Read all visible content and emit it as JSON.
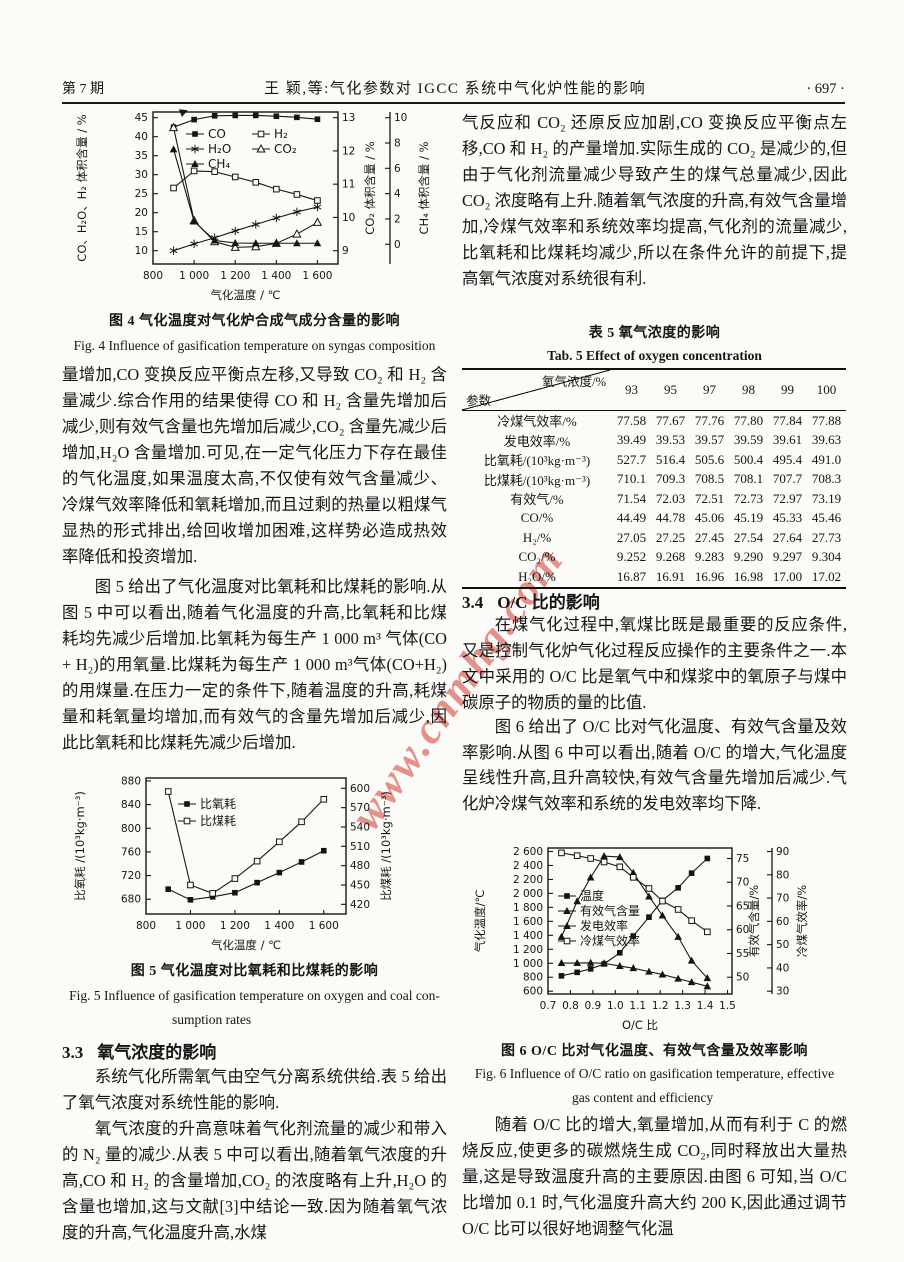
{
  "header": {
    "issue": "第 7 期",
    "title": "王  颖,等:气化参数对 IGCC 系统中气化炉性能的影响",
    "page": "· 697 ·"
  },
  "watermark": {
    "text": "www.cnmhg.com",
    "color": "#d03a2e"
  },
  "left_col": {
    "p1": "量增加,CO 变换反应平衡点左移,又导致 CO₂ 和 H₂ 含量减少.综合作用的结果使得 CO 和 H₂ 含量先增加后减少,则有效气含量也先增加后减少,CO₂ 含量先减少后增加,H₂O 含量增加.可见,在一定气化压力下存在最佳的气化温度,如果温度太高,不仅使有效气含量减少、冷煤气效率降低和氧耗增加,而且过剩的热量以粗煤气显热的形式排出,给回收增加困难,这样势必造成热效率降低和投资增加.",
    "p2": "图 5 给出了气化温度对比氧耗和比煤耗的影响.从图 5 中可以看出,随着气化温度的升高,比氧耗和比煤耗均先减少后增加.比氧耗为每生产 1 000 m³ 气体(CO + H₂)的用氧量.比煤耗为每生产 1 000 m³气体(CO+H₂)的用煤量.在压力一定的条件下,随着温度的升高,耗煤量和耗氧量均增加,而有效气的含量先增加后减少,因此比氧耗和比煤耗先减少后增加.",
    "sec33": {
      "num": "3.3",
      "title": "氧气浓度的影响"
    },
    "p3": "系统气化所需氧气由空气分离系统供给.表 5 给出了氧气浓度对系统性能的影响.",
    "p4": "氧气浓度的升高意味着气化剂流量的减少和带入的 N₂ 量的减少.从表 5 中可以看出,随着氧气浓度的升高,CO 和 H₂ 的含量增加,CO₂ 的浓度略有上升,H₂O 的含量也增加,这与文献[3]中结论一致.因为随着氧气浓度的升高,气化温度升高,水煤"
  },
  "right_col": {
    "p1": "气反应和 CO₂ 还原反应加剧,CO 变换反应平衡点左移,CO 和 H₂ 的产量增加.实际生成的 CO₂ 是减少的,但由于气化剂流量减少导致产生的煤气总量减少,因此 CO₂ 浓度略有上升.随着氧气浓度的升高,有效气含量增加,冷煤气效率和系统效率均提高,气化剂的流量减少,比氧耗和比煤耗均减少,所以在条件允许的前提下,提高氧气浓度对系统很有利.",
    "sec34": {
      "num": "3.4",
      "title": "O/C 比的影响"
    },
    "p2": "在煤气化过程中,氧煤比既是最重要的反应条件,又是控制气化炉气化过程反应操作的主要条件之一.本文中采用的 O/C 比是氧气中和煤浆中的氧原子与煤中碳原子的物质的量的比值.",
    "p3": "图 6 给出了 O/C 比对气化温度、有效气含量及效率影响.从图 6 中可以看出,随着 O/C 的增大,气化温度呈线性升高,且升高较快,有效气含量先增加后减少.气化炉冷煤气效率和系统的发电效率均下降.",
    "p4": "随着 O/C 比的增大,氧量增加,从而有利于 C 的燃烧反应,使更多的碳燃烧生成 CO₂,同时释放出大量热量,这是导致温度升高的主要原因.由图 6 可知,当 O/C 比增加 0.1 时,气化温度升高大约 200 K,因此通过调节 O/C 比可以很好地调整气化温"
  },
  "table5": {
    "caption_cn": "表 5   氧气浓度的影响",
    "caption_en": "Tab. 5   Effect of oxygen concentration",
    "corner_top": "氧气浓度/%",
    "corner_bottom": "参数",
    "columns": [
      "93",
      "95",
      "97",
      "98",
      "99",
      "100"
    ],
    "rows": [
      {
        "label": "冷煤气效率/%",
        "values": [
          "77.58",
          "77.67",
          "77.76",
          "77.80",
          "77.84",
          "77.88"
        ]
      },
      {
        "label": "发电效率/%",
        "values": [
          "39.49",
          "39.53",
          "39.57",
          "39.59",
          "39.61",
          "39.63"
        ]
      },
      {
        "label": "比氧耗/(10³kg·m⁻³)",
        "values": [
          "527.7",
          "516.4",
          "505.6",
          "500.4",
          "495.4",
          "491.0"
        ]
      },
      {
        "label": "比煤耗/(10³kg·m⁻³)",
        "values": [
          "710.1",
          "709.3",
          "708.5",
          "708.1",
          "707.7",
          "708.3"
        ]
      },
      {
        "label": "有效气/%",
        "values": [
          "71.54",
          "72.03",
          "72.51",
          "72.73",
          "72.97",
          "73.19"
        ]
      },
      {
        "label": "CO/%",
        "values": [
          "44.49",
          "44.78",
          "45.06",
          "45.19",
          "45.33",
          "45.46"
        ]
      },
      {
        "label": "H₂/%",
        "values": [
          "27.05",
          "27.25",
          "27.45",
          "27.54",
          "27.64",
          "27.73"
        ]
      },
      {
        "label": "CO₂/%",
        "values": [
          "9.252",
          "9.268",
          "9.283",
          "9.290",
          "9.297",
          "9.304"
        ]
      },
      {
        "label": "H₂O/%",
        "values": [
          "16.87",
          "16.91",
          "16.96",
          "16.98",
          "17.00",
          "17.02"
        ]
      }
    ]
  },
  "chart_data": [
    {
      "id": "fig4",
      "type": "line",
      "title_cn": "图 4   气化温度对气化炉合成气成分含量的影响",
      "title_en_lines": [
        "Fig. 4   Influence of gasification temperature on syngas composition"
      ],
      "xlabel": "气化温度 / ℃",
      "x_axis": {
        "min": 800,
        "max": 1700,
        "ticks": [
          {
            "v": 800,
            "label": "800"
          },
          {
            "v": 1000,
            "label": "1 000"
          },
          {
            "v": 1200,
            "label": "1 200"
          },
          {
            "v": 1400,
            "label": "1 400"
          },
          {
            "v": 1600,
            "label": "1 600"
          }
        ]
      },
      "y_axes": [
        {
          "id": "left",
          "title": "CO、H₂O、H₂ 体积含量 / %",
          "min": 6.5,
          "max": 46.5,
          "ticks": [
            {
              "v": 10,
              "label": "10"
            },
            {
              "v": 15,
              "label": "15"
            },
            {
              "v": 20,
              "label": "20"
            },
            {
              "v": 25,
              "label": "25"
            },
            {
              "v": 30,
              "label": "30"
            },
            {
              "v": 35,
              "label": "35"
            },
            {
              "v": 40,
              "label": "40"
            },
            {
              "v": 45,
              "label": "45"
            }
          ]
        },
        {
          "id": "co2",
          "title": "CO₂ 体积含量 / %",
          "min": 8.6,
          "max": 13.17,
          "ticks": [
            {
              "v": 9,
              "label": "9"
            },
            {
              "v": 10,
              "label": "10"
            },
            {
              "v": 11,
              "label": "11"
            },
            {
              "v": 12,
              "label": "12"
            },
            {
              "v": 13,
              "label": "13"
            }
          ]
        },
        {
          "id": "ch4",
          "title": "CH₄ 体积含量 / %",
          "min": -1.56,
          "max": 10.45,
          "ticks": [
            {
              "v": 0,
              "label": "0"
            },
            {
              "v": 2,
              "label": "2"
            },
            {
              "v": 4,
              "label": "4"
            },
            {
              "v": 6,
              "label": "6"
            },
            {
              "v": 8,
              "label": "8"
            },
            {
              "v": 10,
              "label": "10"
            }
          ]
        }
      ],
      "x": [
        900,
        1000,
        1100,
        1200,
        1300,
        1400,
        1500,
        1600
      ],
      "series": [
        {
          "name": "CO",
          "axis": "left",
          "marker": "sqf",
          "values": [
            42.5,
            44.5,
            45.5,
            45.6,
            45.6,
            45.4,
            45.1,
            44.6
          ]
        },
        {
          "name": "H₂",
          "axis": "left",
          "marker": "sqo",
          "values": [
            26.5,
            31.0,
            30.8,
            29.4,
            28.0,
            26.2,
            24.8,
            23.2
          ]
        },
        {
          "name": "H₂O",
          "axis": "left",
          "marker": "star",
          "values": [
            10.0,
            11.8,
            13.4,
            15.2,
            16.9,
            18.6,
            20.2,
            21.5
          ]
        },
        {
          "name": "CO₂",
          "axis": "co2",
          "marker": "trio",
          "values": [
            12.7,
            9.9,
            9.27,
            9.1,
            9.12,
            9.22,
            9.5,
            9.85
          ]
        },
        {
          "name": "CH₄",
          "axis": "ch4",
          "marker": "trif",
          "values": [
            7.5,
            1.8,
            0.3,
            0.1,
            0.08,
            0.08,
            0.08,
            0.08
          ]
        }
      ]
    },
    {
      "id": "fig5",
      "type": "line",
      "title_cn": "图 5   气化温度对比氧耗和比煤耗的影响",
      "title_en_lines": [
        "Fig. 5   Influence of gasification temperature on oxygen and coal con-",
        "sumption rates"
      ],
      "xlabel": "气化温度 / ℃",
      "x_axis": {
        "min": 800,
        "max": 1700,
        "ticks": [
          {
            "v": 800,
            "label": "800"
          },
          {
            "v": 1000,
            "label": "1 000"
          },
          {
            "v": 1200,
            "label": "1 200"
          },
          {
            "v": 1400,
            "label": "1 400"
          },
          {
            "v": 1600,
            "label": "1 600"
          }
        ]
      },
      "y_axes": [
        {
          "id": "left",
          "title": "比氧耗 /(10³kg·m⁻³)",
          "min": 655,
          "max": 885,
          "ticks": [
            {
              "v": 680,
              "label": "680"
            },
            {
              "v": 720,
              "label": "720"
            },
            {
              "v": 760,
              "label": "760"
            },
            {
              "v": 800,
              "label": "800"
            },
            {
              "v": 840,
              "label": "840"
            },
            {
              "v": 880,
              "label": "880"
            }
          ]
        },
        {
          "id": "coal",
          "title": "比煤耗 /(10³kg·m⁻³)",
          "min": 405,
          "max": 616,
          "ticks": [
            {
              "v": 420,
              "label": "420"
            },
            {
              "v": 450,
              "label": "450"
            },
            {
              "v": 480,
              "label": "480"
            },
            {
              "v": 510,
              "label": "510"
            },
            {
              "v": 540,
              "label": "540"
            },
            {
              "v": 570,
              "label": "570"
            },
            {
              "v": 600,
              "label": "600"
            }
          ]
        }
      ],
      "x": [
        900,
        1000,
        1100,
        1200,
        1300,
        1400,
        1500,
        1600
      ],
      "series": [
        {
          "name": "比氧耗",
          "axis": "left",
          "marker": "sqf",
          "values": [
            697,
            679,
            684,
            691,
            708,
            725,
            743,
            762
          ]
        },
        {
          "name": "比煤耗",
          "axis": "coal",
          "marker": "sqo",
          "values": [
            595,
            450,
            437,
            460,
            487,
            517,
            548,
            583
          ]
        }
      ]
    },
    {
      "id": "fig6",
      "type": "line",
      "title_cn": "图 6   O/C 比对气化温度、有效气含量及效率影响",
      "title_en_lines": [
        "Fig. 6   Influence of O/C ratio on gasification temperature, effective",
        "gas content and efficiency"
      ],
      "xlabel": "O/C 比",
      "x_axis": {
        "min": 0.7,
        "max": 1.52,
        "ticks": [
          {
            "v": 0.7,
            "label": "0.7"
          },
          {
            "v": 0.8,
            "label": "0.8"
          },
          {
            "v": 0.9,
            "label": "0.9"
          },
          {
            "v": 1.0,
            "label": "1.0"
          },
          {
            "v": 1.1,
            "label": "1.1"
          },
          {
            "v": 1.2,
            "label": "1.2"
          },
          {
            "v": 1.3,
            "label": "1.3"
          },
          {
            "v": 1.4,
            "label": "1.4"
          },
          {
            "v": 1.5,
            "label": "1.5"
          }
        ]
      },
      "y_axes": [
        {
          "id": "left",
          "title": "气化温度/℃",
          "min": 560,
          "max": 2650,
          "ticks": [
            {
              "v": 600,
              "label": "600"
            },
            {
              "v": 800,
              "label": "800"
            },
            {
              "v": 1000,
              "label": "1 000"
            },
            {
              "v": 1200,
              "label": "1 200"
            },
            {
              "v": 1400,
              "label": "1 400"
            },
            {
              "v": 1600,
              "label": "1 600"
            },
            {
              "v": 1800,
              "label": "1 800"
            },
            {
              "v": 2000,
              "label": "2 000"
            },
            {
              "v": 2200,
              "label": "2 200"
            },
            {
              "v": 2400,
              "label": "2 400"
            },
            {
              "v": 2600,
              "label": "2 600"
            }
          ]
        },
        {
          "id": "effgas",
          "title": "有效气含量/%",
          "min": 46.47,
          "max": 77.21,
          "ticks": [
            {
              "v": 50,
              "label": "50"
            },
            {
              "v": 55,
              "label": "55"
            },
            {
              "v": 60,
              "label": "60"
            },
            {
              "v": 65,
              "label": "65"
            },
            {
              "v": 70,
              "label": "70"
            },
            {
              "v": 75,
              "label": "75"
            }
          ]
        },
        {
          "id": "eff",
          "title": "冷煤气效率/%",
          "min": 28.8,
          "max": 91.5,
          "ticks": [
            {
              "v": 30,
              "label": "30"
            },
            {
              "v": 40,
              "label": "40"
            },
            {
              "v": 50,
              "label": "50"
            },
            {
              "v": 60,
              "label": "60"
            },
            {
              "v": 70,
              "label": "70"
            },
            {
              "v": 80,
              "label": "80"
            },
            {
              "v": 90,
              "label": "90"
            }
          ]
        }
      ],
      "x": [
        0.76,
        0.83,
        0.89,
        0.95,
        1.02,
        1.08,
        1.15,
        1.21,
        1.28,
        1.34,
        1.41
      ],
      "series": [
        {
          "name": "温度",
          "axis": "left",
          "marker": "sqf",
          "values": [
            820,
            870,
            920,
            990,
            1150,
            1390,
            1660,
            1900,
            2080,
            2290,
            2500
          ]
        },
        {
          "name": "有效气含量",
          "axis": "effgas",
          "marker": "trif",
          "values": [
            58.5,
            66.0,
            71.0,
            75.5,
            75.3,
            72.0,
            67.0,
            63.0,
            58.5,
            53.5,
            49.8
          ]
        },
        {
          "name": "发电效率",
          "axis": "eff",
          "marker": "trif",
          "values": [
            42.1,
            42.1,
            42.2,
            42.0,
            40.8,
            39.9,
            38.4,
            37.2,
            35.4,
            33.9,
            32.1
          ]
        },
        {
          "name": "冷煤气效率",
          "axis": "eff",
          "marker": "sqo",
          "values": [
            89.4,
            88.2,
            87.0,
            85.5,
            83.4,
            78.9,
            74.1,
            68.7,
            65.1,
            60.3,
            55.5
          ]
        }
      ]
    }
  ]
}
